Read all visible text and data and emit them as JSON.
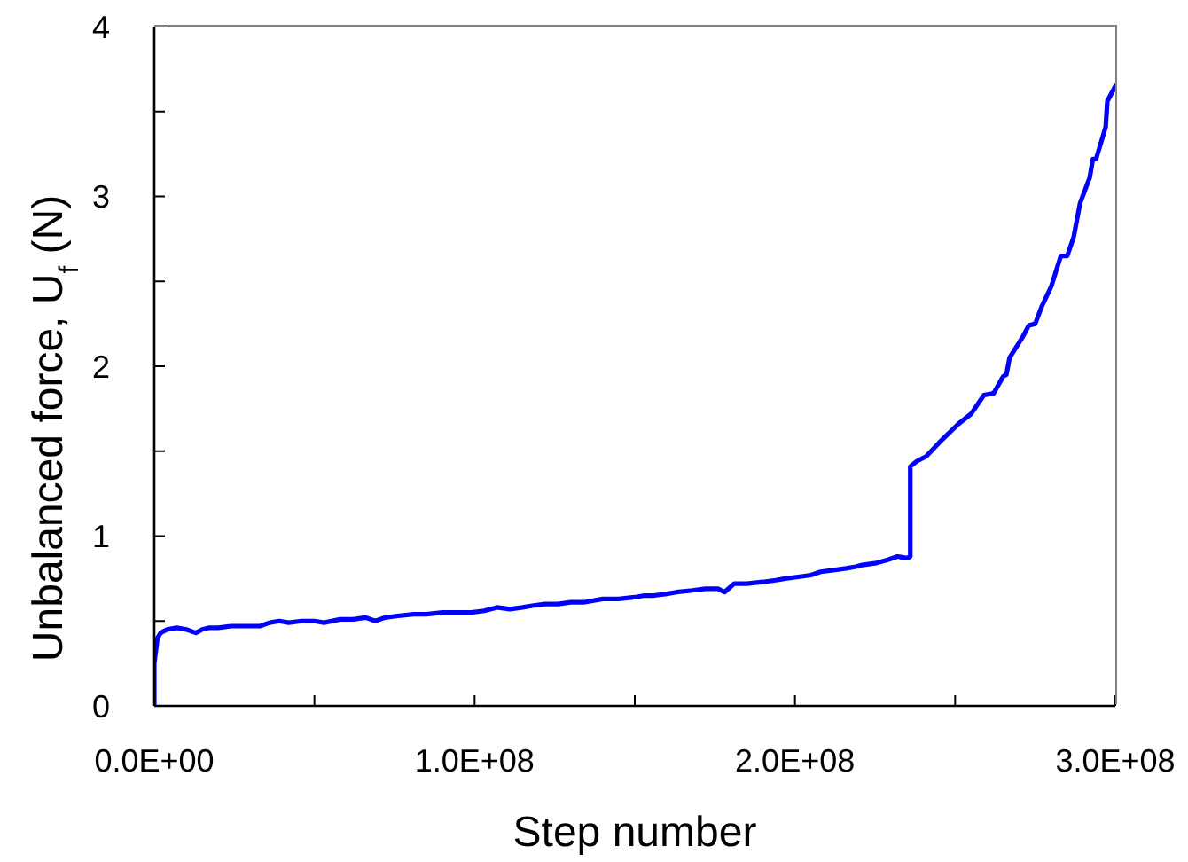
{
  "chart_data": {
    "type": "line",
    "xlabel": "Step number",
    "ylabel": "Unbalanced force, U$_{f}$ (N)",
    "x": [
      0,
      0,
      1000000,
      2000000,
      4000000,
      7000000,
      10000000,
      13000000,
      15000000,
      17000000,
      20000000,
      24000000,
      28000000,
      33000000,
      36000000,
      39000000,
      42000000,
      46000000,
      50000000,
      53000000,
      58000000,
      62000000,
      66000000,
      69000000,
      72000000,
      76000000,
      81000000,
      85000000,
      90000000,
      95000000,
      99000000,
      103000000,
      107000000,
      111000000,
      115000000,
      118000000,
      122000000,
      126000000,
      130000000,
      134000000,
      140000000,
      145000000,
      150000000,
      153000000,
      156000000,
      160000000,
      163000000,
      168000000,
      172000000,
      176000000,
      178000000,
      181000000,
      185000000,
      190000000,
      194000000,
      197000000,
      201000000,
      205000000,
      208000000,
      212000000,
      216000000,
      219000000,
      221000000,
      225000000,
      229000000,
      232000000,
      235000000,
      236000000,
      236000000,
      238000000,
      241000000,
      245000000,
      251000000,
      255000000,
      259000000,
      262000000,
      265000000,
      266000000,
      267000000,
      271000000,
      273000000,
      275000000,
      277000000,
      280000000,
      283000000,
      285000000,
      287000000,
      289000000,
      292000000,
      293000000,
      294000000,
      297000000,
      297500000,
      300000000
    ],
    "series": [
      {
        "color": "#0000ff",
        "values": [
          0,
          0.25,
          0.4,
          0.43,
          0.45,
          0.46,
          0.45,
          0.43,
          0.45,
          0.46,
          0.46,
          0.47,
          0.47,
          0.47,
          0.49,
          0.5,
          0.49,
          0.5,
          0.5,
          0.49,
          0.51,
          0.51,
          0.52,
          0.5,
          0.52,
          0.53,
          0.54,
          0.54,
          0.55,
          0.55,
          0.55,
          0.56,
          0.58,
          0.57,
          0.58,
          0.59,
          0.6,
          0.6,
          0.61,
          0.61,
          0.63,
          0.63,
          0.64,
          0.65,
          0.65,
          0.66,
          0.67,
          0.68,
          0.69,
          0.69,
          0.67,
          0.72,
          0.72,
          0.73,
          0.74,
          0.75,
          0.76,
          0.77,
          0.79,
          0.8,
          0.81,
          0.82,
          0.83,
          0.84,
          0.86,
          0.88,
          0.87,
          0.88,
          1.41,
          1.44,
          1.47,
          1.55,
          1.66,
          1.72,
          1.83,
          1.84,
          1.94,
          1.95,
          2.05,
          2.17,
          2.24,
          2.25,
          2.35,
          2.47,
          2.65,
          2.65,
          2.76,
          2.96,
          3.11,
          3.22,
          3.22,
          3.41,
          3.56,
          3.65
        ]
      }
    ],
    "xlim": [
      0,
      300000000
    ],
    "xticks": [
      {
        "value": 0,
        "label": "0.0E+00"
      },
      {
        "value": 50000000,
        "label": null
      },
      {
        "value": 100000000,
        "label": "1.0E+08"
      },
      {
        "value": 150000000,
        "label": null
      },
      {
        "value": 200000000,
        "label": "2.0E+08"
      },
      {
        "value": 250000000,
        "label": null
      },
      {
        "value": 300000000,
        "label": "3.0E+08"
      }
    ],
    "ylim": [
      0,
      4
    ],
    "yticks": [
      0,
      {
        "value": 0.5,
        "label": null
      },
      1,
      {
        "value": 1.5,
        "label": null
      },
      2,
      {
        "value": 2.5,
        "label": null
      },
      3,
      {
        "value": 3.5,
        "label": null
      },
      4
    ],
    "marker": "none",
    "line_style": "solid"
  }
}
